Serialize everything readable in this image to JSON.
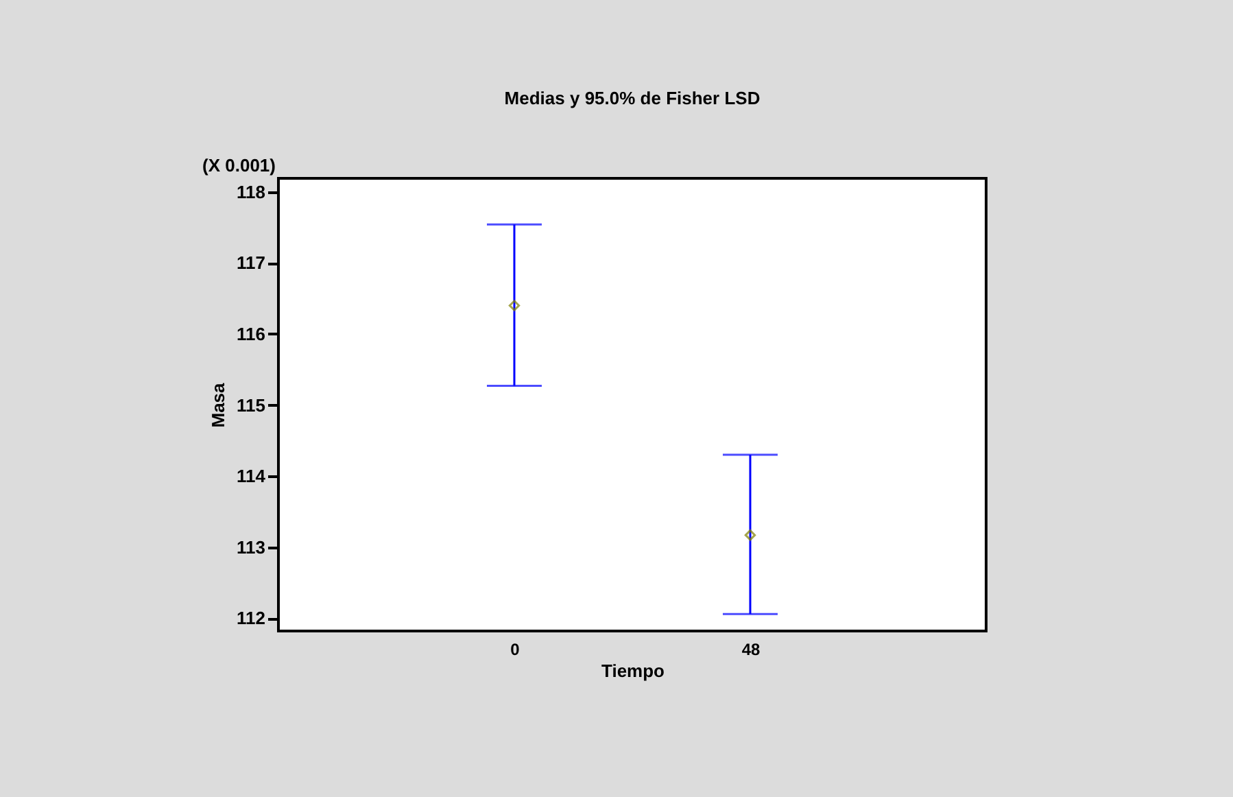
{
  "chart_data": {
    "type": "scatter",
    "title": "Medias y 95.0% de Fisher LSD",
    "xlabel": "Tiempo",
    "ylabel": "Masa",
    "annotations": [
      "(X 0.001)"
    ],
    "categories": [
      "0",
      "48"
    ],
    "series": [
      {
        "color": "#808000",
        "values": [
          116.4,
          113.17
        ],
        "errors": [
          [
            115.27,
            117.54
          ],
          [
            112.06,
            114.3
          ]
        ]
      }
    ],
    "ylim": [
      111.82,
      118.19
    ],
    "yticks": [
      112,
      113,
      114,
      115,
      116,
      117,
      118
    ],
    "marker": "diamond"
  }
}
